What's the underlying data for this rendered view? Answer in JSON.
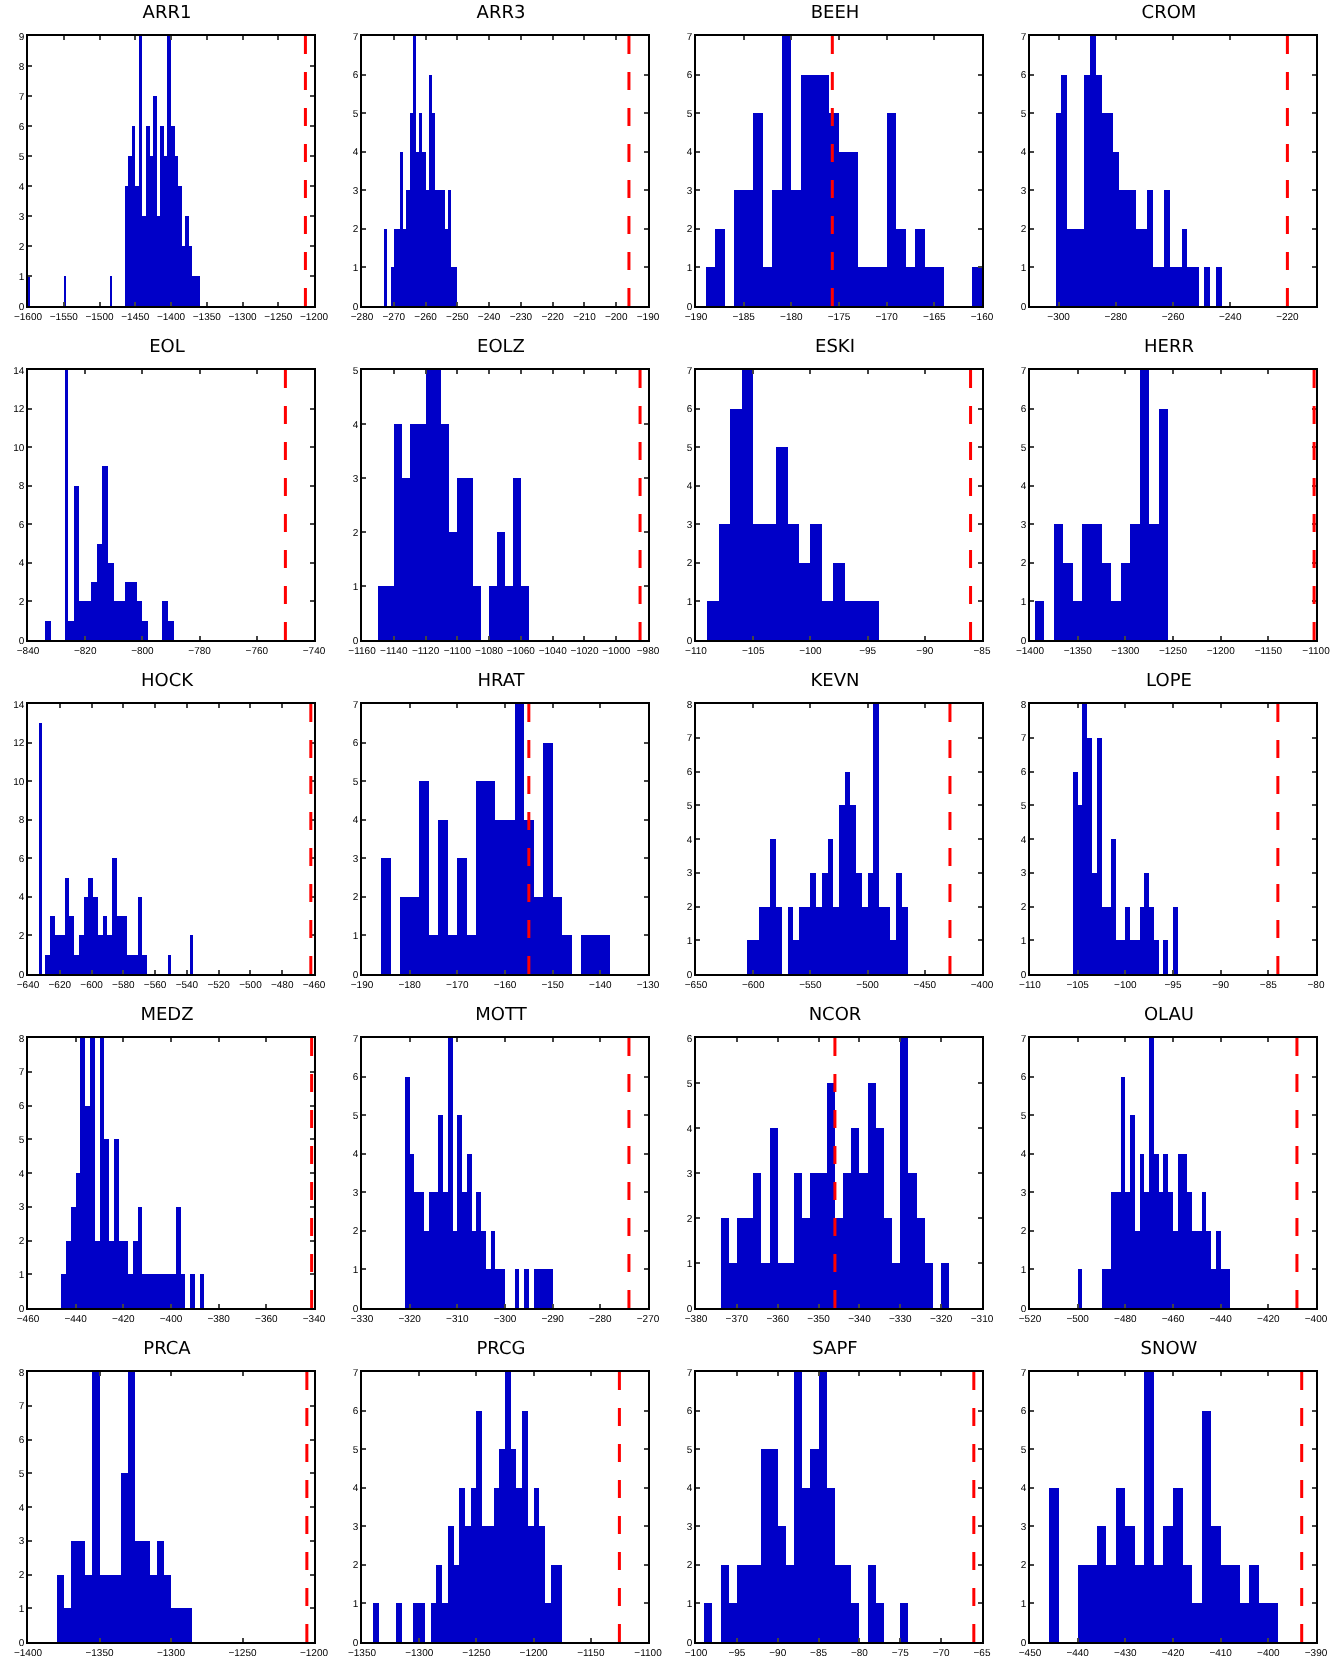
{
  "chart_data": [
    {
      "type": "histogram",
      "title": "ARR1",
      "color": "#0000c8",
      "bins": [
        -1600,
        -1597,
        -1550,
        -1547,
        -1485,
        -1482,
        -1465,
        -1460,
        -1455,
        -1450,
        -1445,
        -1440,
        -1435,
        -1430,
        -1425,
        -1420,
        -1415,
        -1410,
        -1405,
        -1400,
        -1395,
        -1390,
        -1385,
        -1380,
        -1375,
        -1370,
        -1365,
        -1360
      ],
      "values": [
        1,
        0,
        1,
        0,
        1,
        0,
        4,
        5,
        6,
        4,
        9,
        3,
        6,
        5,
        7,
        3,
        6,
        5,
        9,
        6,
        5,
        4,
        2,
        3,
        2,
        1,
        1
      ],
      "xlim": [
        -1600,
        -1200
      ],
      "xticks": [
        -1600,
        -1550,
        -1500,
        -1450,
        -1400,
        -1350,
        -1300,
        -1250,
        -1200
      ],
      "ylim": [
        0,
        9
      ],
      "yticks": [
        0,
        1,
        2,
        3,
        4,
        5,
        6,
        7,
        8,
        9
      ],
      "ref_lines": [
        {
          "axis": "x",
          "value": -1212,
          "color": "#ff0000",
          "line_style": "dashed"
        }
      ]
    },
    {
      "type": "histogram",
      "title": "ARR3",
      "color": "#0000c8",
      "bins": [
        -273,
        -272,
        -271,
        -270,
        -269,
        -268,
        -267,
        -266,
        -265,
        -264,
        -263,
        -262,
        -261,
        -260,
        -259,
        -258,
        -257,
        -256,
        -255,
        -254,
        -253,
        -252,
        -251,
        -250
      ],
      "values": [
        2,
        0,
        1,
        2,
        2,
        4,
        2,
        3,
        5,
        7,
        4,
        5,
        4,
        3,
        6,
        5,
        3,
        3,
        3,
        2,
        3,
        1,
        1
      ],
      "xlim": [
        -280,
        -190
      ],
      "xticks": [
        -280,
        -270,
        -260,
        -250,
        -240,
        -230,
        -220,
        -210,
        -200,
        -190
      ],
      "ylim": [
        0,
        7
      ],
      "yticks": [
        0,
        1,
        2,
        3,
        4,
        5,
        6,
        7
      ],
      "ref_lines": [
        {
          "axis": "x",
          "value": -196,
          "color": "#ff0000",
          "line_style": "dashed"
        }
      ]
    },
    {
      "type": "histogram",
      "title": "BEEH",
      "color": "#0000c8",
      "bins": [
        -189,
        -188,
        -187,
        -186,
        -185,
        -184,
        -183,
        -182,
        -181,
        -180,
        -179,
        -178,
        -177,
        -176,
        -175,
        -174,
        -173,
        -172,
        -171,
        -170,
        -169,
        -168,
        -167,
        -166,
        -165,
        -164,
        -163,
        -162,
        -161,
        -160
      ],
      "values": [
        1,
        2,
        0,
        3,
        3,
        5,
        1,
        3,
        7,
        3,
        6,
        6,
        6,
        5,
        4,
        4,
        1,
        1,
        1,
        5,
        2,
        1,
        2,
        1,
        1,
        0,
        0,
        0,
        1
      ],
      "xlim": [
        -190,
        -160
      ],
      "xticks": [
        -190,
        -185,
        -180,
        -175,
        -170,
        -165,
        -160
      ],
      "ylim": [
        0,
        7
      ],
      "yticks": [
        0,
        1,
        2,
        3,
        4,
        5,
        6,
        7
      ],
      "ref_lines": [
        {
          "axis": "x",
          "value": -175.7,
          "color": "#ff0000",
          "line_style": "dashed"
        }
      ]
    },
    {
      "type": "histogram",
      "title": "CROM",
      "color": "#0000c8",
      "bins": [
        -301,
        -299,
        -297,
        -295,
        -293,
        -291,
        -289,
        -287,
        -285,
        -283,
        -281,
        -279,
        -277,
        -275,
        -273,
        -271,
        -269,
        -267,
        -265,
        -263,
        -261,
        -259,
        -257,
        -255,
        -253,
        -251,
        -249,
        -247,
        -245,
        -243
      ],
      "values": [
        5,
        6,
        2,
        2,
        2,
        6,
        7,
        6,
        5,
        5,
        4,
        3,
        3,
        3,
        2,
        2,
        3,
        1,
        1,
        3,
        1,
        1,
        2,
        1,
        1,
        0,
        1,
        0,
        1
      ],
      "xlim": [
        -310,
        -210
      ],
      "xticks": [
        -300,
        -280,
        -260,
        -240,
        -220
      ],
      "ylim": [
        0,
        7
      ],
      "yticks": [
        0,
        1,
        2,
        3,
        4,
        5,
        6,
        7
      ],
      "ref_lines": [
        {
          "axis": "x",
          "value": -220,
          "color": "#ff0000",
          "line_style": "dashed"
        }
      ]
    },
    {
      "type": "histogram",
      "title": "EOL",
      "color": "#0000c8",
      "bins": [
        -834,
        -832,
        -827,
        -826,
        -824,
        -822,
        -820,
        -818,
        -816,
        -814,
        -812,
        -810,
        -808,
        -806,
        -804,
        -802,
        -800,
        -798,
        -793,
        -791,
        -789
      ],
      "values": [
        1,
        0,
        14,
        1,
        8,
        2,
        2,
        3,
        5,
        9,
        4,
        2,
        2,
        3,
        3,
        2,
        1,
        0,
        2,
        1
      ],
      "xlim": [
        -840,
        -740
      ],
      "xticks": [
        -840,
        -820,
        -800,
        -780,
        -760,
        -740
      ],
      "ylim": [
        0,
        14
      ],
      "yticks": [
        0,
        2,
        4,
        6,
        8,
        10,
        12,
        14
      ],
      "ref_lines": [
        {
          "axis": "x",
          "value": -750,
          "color": "#ff0000",
          "line_style": "dashed"
        }
      ]
    },
    {
      "type": "histogram",
      "title": "EOLZ",
      "color": "#0000c8",
      "bins": [
        -1150,
        -1145,
        -1140,
        -1135,
        -1130,
        -1125,
        -1120,
        -1115,
        -1110,
        -1105,
        -1100,
        -1095,
        -1090,
        -1085,
        -1080,
        -1075,
        -1070,
        -1065,
        -1060,
        -1055
      ],
      "values": [
        1,
        1,
        4,
        3,
        4,
        4,
        5,
        5,
        4,
        2,
        3,
        3,
        1,
        0,
        1,
        2,
        1,
        3,
        1
      ],
      "xlim": [
        -1160,
        -980
      ],
      "xticks": [
        -1160,
        -1140,
        -1120,
        -1100,
        -1080,
        -1060,
        -1040,
        -1020,
        -1000,
        -980
      ],
      "ylim": [
        0,
        5
      ],
      "yticks": [
        0,
        1,
        2,
        3,
        4,
        5
      ],
      "ref_lines": [
        {
          "axis": "x",
          "value": -985,
          "color": "#ff0000",
          "line_style": "dashed"
        }
      ]
    },
    {
      "type": "histogram",
      "title": "ESKI",
      "color": "#0000c8",
      "bins": [
        -109,
        -108,
        -107,
        -106,
        -105,
        -104,
        -103,
        -102,
        -101,
        -100,
        -99,
        -98,
        -97,
        -96,
        -95,
        -94
      ],
      "values": [
        1,
        3,
        6,
        7,
        3,
        3,
        5,
        3,
        2,
        3,
        1,
        2,
        1,
        1,
        1
      ],
      "xlim": [
        -110,
        -85
      ],
      "xticks": [
        -110,
        -105,
        -100,
        -95,
        -90,
        -85
      ],
      "ylim": [
        0,
        7
      ],
      "yticks": [
        0,
        1,
        2,
        3,
        4,
        5,
        6,
        7
      ],
      "ref_lines": [
        {
          "axis": "x",
          "value": -86,
          "color": "#ff0000",
          "line_style": "dashed"
        }
      ]
    },
    {
      "type": "histogram",
      "title": "HERR",
      "color": "#0000c8",
      "bins": [
        -1395,
        -1385,
        -1375,
        -1365,
        -1355,
        -1345,
        -1335,
        -1325,
        -1315,
        -1305,
        -1295,
        -1285,
        -1275,
        -1265,
        -1255
      ],
      "values": [
        1,
        0,
        3,
        2,
        1,
        3,
        3,
        2,
        1,
        2,
        3,
        7,
        3,
        6
      ],
      "xlim": [
        -1400,
        -1100
      ],
      "xticks": [
        -1400,
        -1350,
        -1300,
        -1250,
        -1200,
        -1150,
        -1100
      ],
      "ylim": [
        0,
        7
      ],
      "yticks": [
        0,
        1,
        2,
        3,
        4,
        5,
        6,
        7
      ],
      "ref_lines": [
        {
          "axis": "x",
          "value": -1102,
          "color": "#ff0000",
          "line_style": "dashed"
        }
      ]
    },
    {
      "type": "histogram",
      "title": "HOCK",
      "color": "#0000c8",
      "bins": [
        -633,
        -631,
        -629,
        -626,
        -623,
        -620,
        -617,
        -614,
        -611,
        -608,
        -605,
        -602,
        -599,
        -596,
        -593,
        -590,
        -587,
        -584,
        -581,
        -578,
        -575,
        -571,
        -568,
        -565,
        -552,
        -550,
        -538,
        -536
      ],
      "values": [
        13,
        0,
        1,
        3,
        2,
        2,
        5,
        3,
        1,
        2,
        4,
        5,
        4,
        2,
        3,
        2,
        6,
        3,
        3,
        1,
        1,
        4,
        1,
        0,
        1,
        0,
        2
      ],
      "xlim": [
        -640,
        -460
      ],
      "xticks": [
        -640,
        -620,
        -600,
        -580,
        -560,
        -540,
        -520,
        -500,
        -480,
        -460
      ],
      "ylim": [
        0,
        14
      ],
      "yticks": [
        0,
        2,
        4,
        6,
        8,
        10,
        12,
        14
      ],
      "ref_lines": [
        {
          "axis": "x",
          "value": -462,
          "color": "#ff0000",
          "line_style": "dashed"
        }
      ]
    },
    {
      "type": "histogram",
      "title": "HRAT",
      "color": "#0000c8",
      "bins": [
        -186,
        -184,
        -182,
        -180,
        -178,
        -176,
        -174,
        -172,
        -170,
        -168,
        -166,
        -164,
        -162,
        -160,
        -158,
        -156,
        -154,
        -152,
        -150,
        -148,
        -146,
        -144,
        -142,
        -140,
        -138
      ],
      "values": [
        3,
        0,
        2,
        2,
        5,
        1,
        4,
        1,
        3,
        1,
        5,
        5,
        4,
        4,
        7,
        4,
        2,
        6,
        2,
        1,
        0,
        1,
        1,
        1
      ],
      "xlim": [
        -190,
        -130
      ],
      "xticks": [
        -190,
        -180,
        -170,
        -160,
        -150,
        -140,
        -130
      ],
      "ylim": [
        0,
        7
      ],
      "yticks": [
        0,
        1,
        2,
        3,
        4,
        5,
        6,
        7
      ],
      "ref_lines": [
        {
          "axis": "x",
          "value": -155,
          "color": "#ff0000",
          "line_style": "dashed"
        }
      ]
    },
    {
      "type": "histogram",
      "title": "KEVN",
      "color": "#0000c8",
      "bins": [
        -605,
        -600,
        -595,
        -590,
        -585,
        -580,
        -575,
        -570,
        -565,
        -560,
        -555,
        -550,
        -545,
        -540,
        -535,
        -530,
        -525,
        -520,
        -515,
        -510,
        -505,
        -500,
        -495,
        -490,
        -485,
        -480,
        -475,
        -470,
        -465
      ],
      "values": [
        1,
        1,
        2,
        2,
        4,
        2,
        0,
        2,
        1,
        2,
        2,
        3,
        2,
        3,
        4,
        2,
        5,
        6,
        5,
        3,
        2,
        3,
        8,
        2,
        2,
        1,
        3,
        2
      ],
      "xlim": [
        -650,
        -400
      ],
      "xticks": [
        -650,
        -600,
        -550,
        -500,
        -450,
        -400
      ],
      "ylim": [
        0,
        8
      ],
      "yticks": [
        0,
        1,
        2,
        3,
        4,
        5,
        6,
        7,
        8
      ],
      "ref_lines": [
        {
          "axis": "x",
          "value": -428,
          "color": "#ff0000",
          "line_style": "dashed"
        }
      ]
    },
    {
      "type": "histogram",
      "title": "LOPE",
      "color": "#0000c8",
      "bins": [
        -105.5,
        -105,
        -104.5,
        -104,
        -103.5,
        -103,
        -102.5,
        -102,
        -101.5,
        -101,
        -100.5,
        -100,
        -99.5,
        -99,
        -98.5,
        -98,
        -97.5,
        -97,
        -96.5,
        -96,
        -95.5,
        -95,
        -94.5
      ],
      "values": [
        6,
        5,
        8,
        7,
        3,
        7,
        2,
        2,
        4,
        1,
        1,
        2,
        1,
        1,
        2,
        3,
        2,
        1,
        0,
        1,
        0,
        2
      ],
      "xlim": [
        -110,
        -80
      ],
      "xticks": [
        -110,
        -105,
        -100,
        -95,
        -90,
        -85,
        -80
      ],
      "ylim": [
        0,
        8
      ],
      "yticks": [
        0,
        1,
        2,
        3,
        4,
        5,
        6,
        7,
        8
      ],
      "ref_lines": [
        {
          "axis": "x",
          "value": -84,
          "color": "#ff0000",
          "line_style": "dashed"
        }
      ]
    },
    {
      "type": "histogram",
      "title": "MEDZ",
      "color": "#0000c8",
      "bins": [
        -446,
        -444,
        -442,
        -440,
        -438,
        -436,
        -434,
        -432,
        -430,
        -428,
        -426,
        -424,
        -422,
        -420,
        -418,
        -416,
        -414,
        -412,
        -410,
        -408,
        -406,
        -404,
        -402,
        -400,
        -398,
        -396,
        -394,
        -392,
        -390,
        -388,
        -386,
        -384
      ],
      "values": [
        1,
        2,
        3,
        4,
        8,
        6,
        8,
        2,
        8,
        5,
        2,
        5,
        2,
        2,
        1,
        2,
        3,
        1,
        1,
        1,
        1,
        1,
        1,
        1,
        3,
        1,
        0,
        1,
        0,
        1,
        0
      ],
      "xlim": [
        -460,
        -340
      ],
      "xticks": [
        -460,
        -440,
        -420,
        -400,
        -380,
        -360,
        -340
      ],
      "ylim": [
        0,
        8
      ],
      "yticks": [
        0,
        1,
        2,
        3,
        4,
        5,
        6,
        7,
        8
      ],
      "ref_lines": [
        {
          "axis": "x",
          "value": -341,
          "color": "#ff0000",
          "line_style": "dashed"
        }
      ]
    },
    {
      "type": "histogram",
      "title": "MOTT",
      "color": "#0000c8",
      "bins": [
        -321,
        -320,
        -319,
        -318,
        -317,
        -316,
        -315,
        -314,
        -313,
        -312,
        -311,
        -310,
        -309,
        -308,
        -307,
        -306,
        -305,
        -304,
        -303,
        -302,
        -301,
        -300,
        -299,
        -298,
        -297,
        -296,
        -295,
        -294,
        -293,
        -292,
        -291,
        -290
      ],
      "values": [
        6,
        4,
        3,
        3,
        2,
        3,
        3,
        5,
        3,
        7,
        2,
        5,
        3,
        4,
        2,
        3,
        2,
        1,
        2,
        1,
        1,
        0,
        0,
        1,
        0,
        1,
        0,
        1,
        1,
        1,
        1
      ],
      "xlim": [
        -330,
        -270
      ],
      "xticks": [
        -330,
        -320,
        -310,
        -300,
        -290,
        -280,
        -270
      ],
      "ylim": [
        0,
        7
      ],
      "yticks": [
        0,
        1,
        2,
        3,
        4,
        5,
        6,
        7
      ],
      "ref_lines": [
        {
          "axis": "x",
          "value": -274,
          "color": "#ff0000",
          "line_style": "dashed"
        }
      ]
    },
    {
      "type": "histogram",
      "title": "NCOR",
      "color": "#0000c8",
      "bins": [
        -374,
        -372,
        -370,
        -368,
        -366,
        -364,
        -362,
        -360,
        -358,
        -356,
        -354,
        -352,
        -350,
        -348,
        -346,
        -344,
        -342,
        -340,
        -338,
        -336,
        -334,
        -332,
        -330,
        -328,
        -326,
        -324,
        -322,
        -320,
        -318
      ],
      "values": [
        2,
        1,
        2,
        2,
        3,
        1,
        4,
        1,
        1,
        3,
        2,
        3,
        3,
        5,
        2,
        3,
        4,
        3,
        5,
        4,
        2,
        1,
        6,
        3,
        2,
        1,
        0,
        1
      ],
      "xlim": [
        -380,
        -310
      ],
      "xticks": [
        -380,
        -370,
        -360,
        -350,
        -340,
        -330,
        -320,
        -310
      ],
      "ylim": [
        0,
        6
      ],
      "yticks": [
        0,
        1,
        2,
        3,
        4,
        5,
        6
      ],
      "ref_lines": [
        {
          "axis": "x",
          "value": -346,
          "color": "#ff0000",
          "line_style": "dashed"
        }
      ]
    },
    {
      "type": "histogram",
      "title": "OLAU",
      "color": "#0000c8",
      "bins": [
        -500,
        -498,
        -490,
        -488,
        -486,
        -484,
        -482,
        -480,
        -478,
        -476,
        -474,
        -472,
        -470,
        -468,
        -466,
        -464,
        -462,
        -460,
        -458,
        -456,
        -454,
        -452,
        -450,
        -448,
        -446,
        -444,
        -442,
        -440,
        -438,
        -436
      ],
      "values": [
        1,
        0,
        1,
        1,
        3,
        3,
        6,
        3,
        5,
        2,
        4,
        3,
        7,
        4,
        3,
        4,
        3,
        2,
        4,
        4,
        3,
        2,
        2,
        3,
        2,
        1,
        2,
        1,
        1
      ],
      "xlim": [
        -520,
        -400
      ],
      "xticks": [
        -520,
        -500,
        -480,
        -460,
        -440,
        -420,
        -400
      ],
      "ylim": [
        0,
        7
      ],
      "yticks": [
        0,
        1,
        2,
        3,
        4,
        5,
        6,
        7
      ],
      "ref_lines": [
        {
          "axis": "x",
          "value": -408,
          "color": "#ff0000",
          "line_style": "dashed"
        }
      ]
    },
    {
      "type": "histogram",
      "title": "PRCA",
      "color": "#0000c8",
      "bins": [
        -1380,
        -1375,
        -1370,
        -1365,
        -1360,
        -1355,
        -1350,
        -1345,
        -1340,
        -1335,
        -1330,
        -1325,
        -1320,
        -1315,
        -1310,
        -1305,
        -1300,
        -1295,
        -1290,
        -1285
      ],
      "values": [
        2,
        1,
        3,
        3,
        2,
        8,
        2,
        2,
        2,
        5,
        8,
        3,
        3,
        2,
        3,
        2,
        1,
        1,
        1
      ],
      "xlim": [
        -1400,
        -1200
      ],
      "xticks": [
        -1400,
        -1350,
        -1300,
        -1250,
        -1200
      ],
      "ylim": [
        0,
        8
      ],
      "yticks": [
        0,
        1,
        2,
        3,
        4,
        5,
        6,
        7,
        8
      ],
      "ref_lines": [
        {
          "axis": "x",
          "value": -1205,
          "color": "#ff0000",
          "line_style": "dashed"
        }
      ]
    },
    {
      "type": "histogram",
      "title": "PRCG",
      "color": "#0000c8",
      "bins": [
        -1340,
        -1335,
        -1330,
        -1325,
        -1320,
        -1315,
        -1310,
        -1305,
        -1300,
        -1295,
        -1290,
        -1285,
        -1280,
        -1275,
        -1270,
        -1265,
        -1260,
        -1255,
        -1250,
        -1245,
        -1240,
        -1235,
        -1230,
        -1225,
        -1220,
        -1215,
        -1210,
        -1205,
        -1200,
        -1195,
        -1190,
        -1185,
        -1180,
        -1175
      ],
      "values": [
        1,
        0,
        0,
        0,
        1,
        0,
        0,
        1,
        1,
        0,
        1,
        2,
        1,
        3,
        2,
        4,
        3,
        4,
        6,
        3,
        3,
        4,
        5,
        7,
        5,
        4,
        6,
        3,
        4,
        3,
        1,
        2,
        2
      ],
      "xlim": [
        -1350,
        -1100
      ],
      "xticks": [
        -1350,
        -1300,
        -1250,
        -1200,
        -1150,
        -1100
      ],
      "ylim": [
        0,
        7
      ],
      "yticks": [
        0,
        1,
        2,
        3,
        4,
        5,
        6,
        7
      ],
      "ref_lines": [
        {
          "axis": "x",
          "value": -1125,
          "color": "#ff0000",
          "line_style": "dashed"
        }
      ]
    },
    {
      "type": "histogram",
      "title": "SAPF",
      "color": "#0000c8",
      "bins": [
        -99,
        -98,
        -97,
        -96,
        -95,
        -94,
        -93,
        -92,
        -91,
        -90,
        -89,
        -88,
        -87,
        -86,
        -85,
        -84,
        -83,
        -82,
        -81,
        -80,
        -79,
        -78,
        -77,
        -76,
        -75,
        -74
      ],
      "values": [
        1,
        0,
        2,
        1,
        2,
        2,
        2,
        5,
        5,
        3,
        2,
        7,
        4,
        5,
        7,
        4,
        2,
        2,
        1,
        0,
        2,
        1,
        0,
        0,
        1
      ],
      "xlim": [
        -100,
        -65
      ],
      "xticks": [
        -100,
        -95,
        -90,
        -85,
        -80,
        -75,
        -70,
        -65
      ],
      "ylim": [
        0,
        7
      ],
      "yticks": [
        0,
        1,
        2,
        3,
        4,
        5,
        6,
        7
      ],
      "ref_lines": [
        {
          "axis": "x",
          "value": -66,
          "color": "#ff0000",
          "line_style": "dashed"
        }
      ]
    },
    {
      "type": "histogram",
      "title": "SNOW",
      "color": "#0000c8",
      "bins": [
        -446,
        -444,
        -442,
        -440,
        -438,
        -436,
        -434,
        -432,
        -430,
        -428,
        -426,
        -424,
        -422,
        -420,
        -418,
        -416,
        -414,
        -412,
        -410,
        -408,
        -406,
        -404,
        -402,
        -400,
        -398
      ],
      "values": [
        4,
        0,
        0,
        2,
        2,
        3,
        2,
        4,
        3,
        2,
        7,
        2,
        3,
        4,
        2,
        1,
        6,
        3,
        2,
        2,
        1,
        2,
        1,
        1
      ],
      "xlim": [
        -450,
        -390
      ],
      "xticks": [
        -450,
        -440,
        -430,
        -420,
        -410,
        -400,
        -390
      ],
      "ylim": [
        0,
        7
      ],
      "yticks": [
        0,
        1,
        2,
        3,
        4,
        5,
        6,
        7
      ],
      "ref_lines": [
        {
          "axis": "x",
          "value": -393,
          "color": "#ff0000",
          "line_style": "dashed"
        }
      ]
    }
  ]
}
